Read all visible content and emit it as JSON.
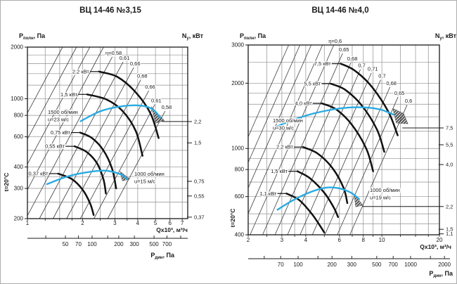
{
  "page": {
    "background": "#ffffff",
    "frame_border": "#adadad"
  },
  "colors": {
    "grid": "#8f8f8f",
    "axis": "#1a1a1a",
    "eta_line": "#3c3c3c",
    "power_curve": "#111111",
    "fan_curve": "#29abe2",
    "hatch": "#2f2f2f",
    "text": "#1a1a1a"
  },
  "chart_data": [
    {
      "type": "line",
      "title": "ВЦ 14-46 №3,15",
      "x_axis": {
        "label": "Qx10³, м³/ч",
        "scale": "log",
        "range": [
          1,
          7.5
        ],
        "ticks": [
          1,
          2,
          3,
          4,
          5,
          6,
          7
        ],
        "grid": [
          1,
          1.25,
          1.5,
          1.75,
          2,
          2.5,
          3,
          3.5,
          4,
          5,
          6,
          7
        ]
      },
      "y_axis": {
        "label_base": "P",
        "label_sub": "полн",
        "label_unit": ", Па",
        "scale": "log",
        "range": [
          200,
          2000
        ],
        "ticks": [
          2000,
          1000,
          800,
          600,
          400,
          300,
          200
        ],
        "grid": [
          200,
          250,
          300,
          350,
          400,
          500,
          600,
          700,
          800,
          1000,
          1200,
          1400,
          1600,
          1800,
          2000
        ]
      },
      "right_axis": {
        "label_base": "N",
        "label_sub": "y",
        "label_unit": ", кВт",
        "entries": [
          {
            "label": "2,2",
            "p": 736,
            "from_q": 5.45
          },
          {
            "label": "1,5",
            "p": 553
          },
          {
            "label": "0,75",
            "p": 330
          },
          {
            "label": "0,55",
            "p": 271
          },
          {
            "label": "0,37",
            "p": 204
          }
        ]
      },
      "secondary_axis": {
        "label_base": "P",
        "label_sub": "дин",
        "label_unit": ", Па",
        "ticks": [
          30,
          50,
          70,
          100,
          150,
          200,
          300,
          500,
          700,
          1000
        ],
        "labeled": [
          50,
          70,
          100,
          200,
          300,
          500,
          700
        ]
      },
      "temperature_label": "t=20°C",
      "efficiency_lines": [
        {
          "k": 826,
          "top_p": 2000
        },
        {
          "k": 583,
          "top_p": 2000
        },
        {
          "k": 416,
          "top_p": 2000
        },
        {
          "k": 295,
          "top_p": 2000
        },
        {
          "k": 208,
          "top_p": 1754,
          "label": "η=0,58"
        },
        {
          "k": 148,
          "top_p": 1640,
          "label": "0,61"
        },
        {
          "k": 105,
          "top_p": 1520,
          "label": "0,66"
        },
        {
          "k": 74.6,
          "top_p": 1290,
          "label": "0,68"
        },
        {
          "k": 52.8,
          "top_p": 1115,
          "label": "0,66"
        },
        {
          "k": 37.6,
          "top_p": 926,
          "label": "0,61"
        },
        {
          "k": 26.6,
          "top_p": 848,
          "label": "0,58"
        }
      ],
      "power_curves": [
        {
          "label": "2,2 кВт",
          "points": [
            [
              2.46,
              1440
            ],
            [
              3.1,
              1340
            ],
            [
              3.9,
              1090
            ],
            [
              4.7,
              820
            ],
            [
              5.2,
              590
            ]
          ]
        },
        {
          "label": "1,5 кВт",
          "points": [
            [
              2.12,
              1060
            ],
            [
              2.7,
              990
            ],
            [
              3.3,
              850
            ],
            [
              3.9,
              650
            ],
            [
              4.25,
              465
            ]
          ]
        },
        {
          "label": "0,75 кВт",
          "points": [
            [
              1.94,
              635
            ],
            [
              2.25,
              590
            ],
            [
              2.6,
              500
            ],
            [
              2.9,
              390
            ],
            [
              3.05,
              300
            ]
          ]
        },
        {
          "label": "0,55 кВт",
          "points": [
            [
              1.81,
              528
            ],
            [
              2.1,
              490
            ],
            [
              2.4,
              420
            ],
            [
              2.6,
              340
            ],
            [
              2.68,
              280
            ]
          ]
        },
        {
          "label": "0,37 кВт",
          "points": [
            [
              1.47,
              366
            ],
            [
              1.75,
              340
            ],
            [
              2.0,
              295
            ],
            [
              2.2,
              245
            ],
            [
              2.3,
              210
            ]
          ]
        }
      ],
      "fan_curves": [
        {
          "annotation": [
            "1500 об/мин",
            "u=23 м/с"
          ],
          "points": [
            [
              1.95,
              740
            ],
            [
              2.5,
              845
            ],
            [
              3.2,
              900
            ],
            [
              4.0,
              915
            ],
            [
              4.6,
              890
            ],
            [
              5.0,
              840
            ],
            [
              5.3,
              775
            ]
          ],
          "hatch": [
            [
              4.75,
              900
            ],
            [
              5.6,
              745
            ],
            [
              5.0,
              720
            ]
          ]
        },
        {
          "annotation": [
            "1000 об/мин",
            "u=15 м/с"
          ],
          "points": [
            [
              1.28,
              318
            ],
            [
              1.65,
              352
            ],
            [
              2.1,
              372
            ],
            [
              2.6,
              381
            ],
            [
              3.0,
              372
            ],
            [
              3.3,
              358
            ],
            [
              3.5,
              340
            ]
          ],
          "hatch": [
            [
              3.2,
              378
            ],
            [
              3.62,
              340
            ],
            [
              3.3,
              332
            ]
          ]
        }
      ]
    },
    {
      "type": "line",
      "title": "ВЦ 14-46 №4,0",
      "x_axis": {
        "label": "Qx10³, м³/ч",
        "scale": "log",
        "range": [
          2,
          20
        ],
        "ticks": [
          2,
          3,
          4,
          6,
          8,
          10,
          20
        ],
        "grid": [
          2,
          2.5,
          3,
          3.5,
          4,
          5,
          6,
          7,
          8,
          9,
          10,
          12.5,
          15,
          17.5,
          20
        ]
      },
      "y_axis": {
        "label_base": "P",
        "label_sub": "полн",
        "label_unit": ", Па",
        "scale": "log",
        "range": [
          400,
          3000
        ],
        "ticks": [
          3000,
          2000,
          1000,
          800,
          600,
          400
        ],
        "grid": [
          400,
          450,
          500,
          600,
          700,
          800,
          900,
          1000,
          1200,
          1400,
          1600,
          1800,
          2000,
          2500,
          3000
        ]
      },
      "right_axis": {
        "label_base": "N",
        "label_sub": "y",
        "label_unit": ", кВт",
        "entries": [
          {
            "label": "7,5",
            "p": 1244,
            "from_q": 12.8
          },
          {
            "label": "5,5",
            "p": 1040
          },
          {
            "label": "4,0",
            "p": 843
          },
          {
            "label": "2,2",
            "p": 540,
            "from_q": 7.9
          },
          {
            "label": "1,5",
            "p": 424
          },
          {
            "label": "1,1",
            "p": 404
          }
        ]
      },
      "secondary_axis": {
        "label_base": "P",
        "label_sub": "дин",
        "label_unit": ", Па",
        "ticks": [
          50,
          70,
          100,
          150,
          200,
          300,
          500,
          700,
          1000,
          1500,
          2000
        ],
        "labeled": [
          70,
          100,
          200,
          300,
          500,
          700,
          1000,
          2000
        ]
      },
      "temperature_label": "t=20°C",
      "efficiency_lines": [
        {
          "k": 283,
          "top_p": 3000
        },
        {
          "k": 215.7,
          "top_p": 3000
        },
        {
          "k": 164.4,
          "top_p": 3000
        },
        {
          "k": 125.3,
          "top_p": 3000
        },
        {
          "k": 95.5,
          "top_p": 3000,
          "label": "η=0,6"
        },
        {
          "k": 70.7,
          "top_p": 2742,
          "label": "0,65"
        },
        {
          "k": 52.4,
          "top_p": 2487,
          "label": "0,68"
        },
        {
          "k": 38.8,
          "top_p": 2316,
          "label": "0,7"
        },
        {
          "k": 28.7,
          "top_p": 2230,
          "label": "0,71"
        },
        {
          "k": 21.3,
          "top_p": 2070,
          "label": "0,7"
        },
        {
          "k": 15.8,
          "top_p": 1920,
          "label": "0,68"
        },
        {
          "k": 11.7,
          "top_p": 1729,
          "label": "0,65"
        },
        {
          "k": 8.65,
          "top_p": 1590,
          "label": "0,6"
        }
      ],
      "power_curves": [
        {
          "label": "7,5 кВт",
          "points": [
            [
              6.1,
              2460
            ],
            [
              7.2,
              2290
            ],
            [
              8.8,
              1940
            ],
            [
              10.8,
              1480
            ],
            [
              12.1,
              1150
            ]
          ]
        },
        {
          "label": "5,5 кВт",
          "points": [
            [
              5.4,
              1990
            ],
            [
              6.4,
              1870
            ],
            [
              7.8,
              1590
            ],
            [
              9.4,
              1230
            ],
            [
              10.3,
              965
            ]
          ]
        },
        {
          "label": "4,0 кВт",
          "points": [
            [
              4.85,
              1615
            ],
            [
              5.8,
              1510
            ],
            [
              7.0,
              1280
            ],
            [
              8.3,
              995
            ],
            [
              9.0,
              785
            ]
          ]
        },
        {
          "label": "2,2 кВт",
          "points": [
            [
              3.87,
              1015
            ],
            [
              4.6,
              950
            ],
            [
              5.5,
              815
            ],
            [
              6.3,
              660
            ],
            [
              6.6,
              560
            ]
          ]
        },
        {
          "label": "1,5 кВт",
          "points": [
            [
              3.62,
              785
            ],
            [
              4.2,
              730
            ],
            [
              5.0,
              625
            ],
            [
              5.6,
              535
            ],
            [
              5.9,
              483
            ]
          ]
        },
        {
          "label": "1,1 кВт",
          "points": [
            [
              3.17,
              620
            ],
            [
              3.7,
              578
            ],
            [
              4.3,
              500
            ],
            [
              4.75,
              440
            ],
            [
              5.0,
              410
            ]
          ]
        }
      ],
      "fan_curves": [
        {
          "annotation": [
            "1500 об/мин",
            "u=30 м/с"
          ],
          "points": [
            [
              2.75,
              1250
            ],
            [
              3.4,
              1350
            ],
            [
              4.4,
              1450
            ],
            [
              5.6,
              1515
            ],
            [
              7.0,
              1548
            ],
            [
              8.5,
              1542
            ],
            [
              10.0,
              1505
            ],
            [
              11.5,
              1432
            ]
          ],
          "hatch": [
            [
              11.4,
              1530
            ],
            [
              13.0,
              1450
            ],
            [
              13.7,
              1300
            ],
            [
              11.9,
              1310
            ]
          ]
        },
        {
          "annotation": [
            "1000 об/мин",
            "u=19 м/с"
          ],
          "points": [
            [
              2.85,
              522
            ],
            [
              3.4,
              575
            ],
            [
              4.2,
              628
            ],
            [
              5.1,
              660
            ],
            [
              6.0,
              655
            ],
            [
              6.9,
              625
            ],
            [
              7.6,
              585
            ]
          ],
          "hatch": [
            [
              7.15,
              618
            ],
            [
              7.95,
              548
            ],
            [
              7.3,
              538
            ]
          ]
        }
      ]
    }
  ]
}
